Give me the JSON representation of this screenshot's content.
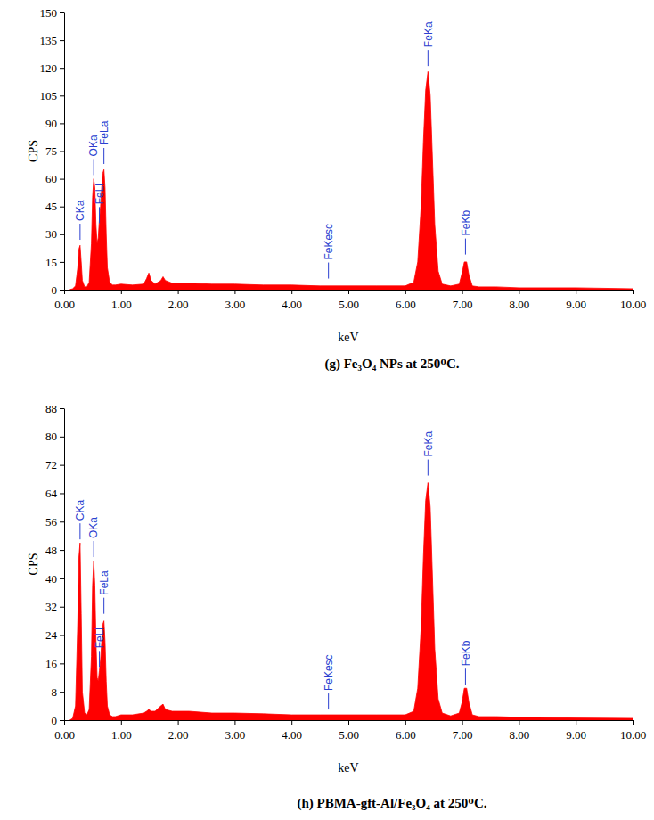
{
  "chart_data": [
    {
      "type": "area",
      "title": "(g) Fe₃O₄ NPs at 250ᴼC.",
      "x_label": "keV",
      "y_label": "CPS",
      "color": "#ff0000",
      "xlim": [
        0,
        10
      ],
      "ylim": [
        0,
        150
      ],
      "xticks": [
        {
          "value": 0,
          "label": "0.00"
        },
        {
          "value": 1,
          "label": "1.00"
        },
        {
          "value": 2,
          "label": "2.00"
        },
        {
          "value": 3,
          "label": "3.00"
        },
        {
          "value": 4,
          "label": "4.00"
        },
        {
          "value": 5,
          "label": "5.00"
        },
        {
          "value": 6,
          "label": "6.00"
        },
        {
          "value": 7,
          "label": "7.00"
        },
        {
          "value": 8,
          "label": "8.00"
        },
        {
          "value": 9,
          "label": "9.00"
        },
        {
          "value": 10,
          "label": "10.00"
        }
      ],
      "yticks": [
        0,
        15,
        30,
        45,
        60,
        75,
        90,
        105,
        120,
        135,
        150
      ],
      "x": [
        0.1,
        0.15,
        0.2,
        0.24,
        0.26,
        0.28,
        0.3,
        0.32,
        0.36,
        0.4,
        0.44,
        0.48,
        0.5,
        0.52,
        0.54,
        0.56,
        0.58,
        0.6,
        0.62,
        0.64,
        0.66,
        0.68,
        0.7,
        0.72,
        0.74,
        0.76,
        0.8,
        0.85,
        0.9,
        1.0,
        1.2,
        1.4,
        1.45,
        1.49,
        1.53,
        1.6,
        1.7,
        1.74,
        1.78,
        1.9,
        2.2,
        2.6,
        3.0,
        3.5,
        4.0,
        4.5,
        5.0,
        5.5,
        6.0,
        6.15,
        6.22,
        6.28,
        6.32,
        6.36,
        6.4,
        6.44,
        6.48,
        6.52,
        6.58,
        6.65,
        6.8,
        6.95,
        7.0,
        7.04,
        7.08,
        7.12,
        7.18,
        7.3,
        7.6,
        8,
        9,
        10
      ],
      "values": [
        0,
        0.5,
        2,
        12,
        22,
        24,
        15,
        5,
        1.5,
        1.5,
        4,
        25,
        50,
        60,
        55,
        35,
        25,
        28,
        38,
        45,
        55,
        63,
        65,
        55,
        30,
        12,
        4,
        2.5,
        2.5,
        3,
        2.5,
        3,
        6,
        9,
        5,
        3,
        5,
        7,
        5,
        3.5,
        3.5,
        3,
        3,
        2.5,
        2.5,
        2,
        2,
        2,
        2,
        4,
        15,
        45,
        80,
        108,
        118,
        105,
        70,
        35,
        10,
        3,
        2,
        3,
        9,
        15,
        15,
        8,
        2,
        1.5,
        1.5,
        1,
        1,
        0.5
      ],
      "annotations": [
        {
          "text": "CKa",
          "x": 0.28,
          "y": 27
        },
        {
          "text": "OKa",
          "x": 0.52,
          "y": 62
        },
        {
          "text": "FeLl",
          "x": 0.62,
          "y": 36
        },
        {
          "text": "FeLa",
          "x": 0.7,
          "y": 68
        },
        {
          "text": "FeKesc",
          "x": 4.65,
          "y": 6
        },
        {
          "text": "FeKa",
          "x": 6.4,
          "y": 121
        },
        {
          "text": "FeKb",
          "x": 7.06,
          "y": 19
        }
      ]
    },
    {
      "type": "area",
      "title": "(h) PBMA-gft-Al/Fe₃O₄ at 250ᴼC.",
      "x_label": "keV",
      "y_label": "CPS",
      "color": "#ff0000",
      "xlim": [
        0,
        10
      ],
      "ylim": [
        0,
        88
      ],
      "xticks": [
        {
          "value": 0,
          "label": "0.00"
        },
        {
          "value": 1,
          "label": "1.00"
        },
        {
          "value": 2,
          "label": "2.00"
        },
        {
          "value": 3,
          "label": "3.00"
        },
        {
          "value": 4,
          "label": "4.00"
        },
        {
          "value": 5,
          "label": "5.00"
        },
        {
          "value": 6,
          "label": "6.00"
        },
        {
          "value": 7,
          "label": "7.00"
        },
        {
          "value": 8,
          "label": "8.00"
        },
        {
          "value": 9,
          "label": "9.00"
        },
        {
          "value": 10,
          "label": "10.00"
        }
      ],
      "yticks": [
        0,
        8,
        16,
        24,
        32,
        40,
        48,
        56,
        64,
        72,
        80,
        88
      ],
      "x": [
        0.1,
        0.15,
        0.2,
        0.24,
        0.26,
        0.28,
        0.3,
        0.32,
        0.36,
        0.4,
        0.44,
        0.48,
        0.5,
        0.52,
        0.54,
        0.56,
        0.58,
        0.6,
        0.62,
        0.64,
        0.66,
        0.68,
        0.7,
        0.72,
        0.74,
        0.76,
        0.8,
        0.85,
        0.9,
        1.0,
        1.2,
        1.4,
        1.45,
        1.49,
        1.53,
        1.6,
        1.7,
        1.74,
        1.78,
        1.9,
        2.2,
        2.6,
        3.0,
        3.5,
        4.0,
        4.5,
        5.0,
        5.5,
        6.0,
        6.15,
        6.22,
        6.28,
        6.32,
        6.36,
        6.4,
        6.44,
        6.48,
        6.52,
        6.58,
        6.65,
        6.8,
        6.95,
        7.0,
        7.04,
        7.08,
        7.12,
        7.18,
        7.3,
        7.6,
        8,
        9,
        10
      ],
      "values": [
        0,
        0.5,
        4,
        28,
        46,
        50,
        30,
        8,
        2,
        1.5,
        3,
        18,
        38,
        45,
        38,
        22,
        12,
        11,
        14,
        17,
        22,
        27,
        28,
        22,
        11,
        4,
        1.5,
        1,
        1,
        1.5,
        1.5,
        2,
        2.5,
        3,
        2.5,
        2.5,
        4,
        4.5,
        3,
        2.5,
        2.5,
        2,
        2,
        1.8,
        1.5,
        1.5,
        1.5,
        1.5,
        1.5,
        2.5,
        9,
        26,
        46,
        62,
        67,
        60,
        40,
        20,
        6,
        2,
        1.2,
        2,
        5,
        9,
        9,
        5,
        1.5,
        1,
        1,
        0.8,
        0.6,
        0.5
      ],
      "annotations": [
        {
          "text": "CKa",
          "x": 0.28,
          "y": 51
        },
        {
          "text": "OKa",
          "x": 0.52,
          "y": 46
        },
        {
          "text": "FeLl",
          "x": 0.62,
          "y": 15
        },
        {
          "text": "FeLa",
          "x": 0.7,
          "y": 30
        },
        {
          "text": "FeKesc",
          "x": 4.65,
          "y": 3
        },
        {
          "text": "FeKa",
          "x": 6.4,
          "y": 69
        },
        {
          "text": "FeKb",
          "x": 7.06,
          "y": 10
        }
      ]
    }
  ]
}
